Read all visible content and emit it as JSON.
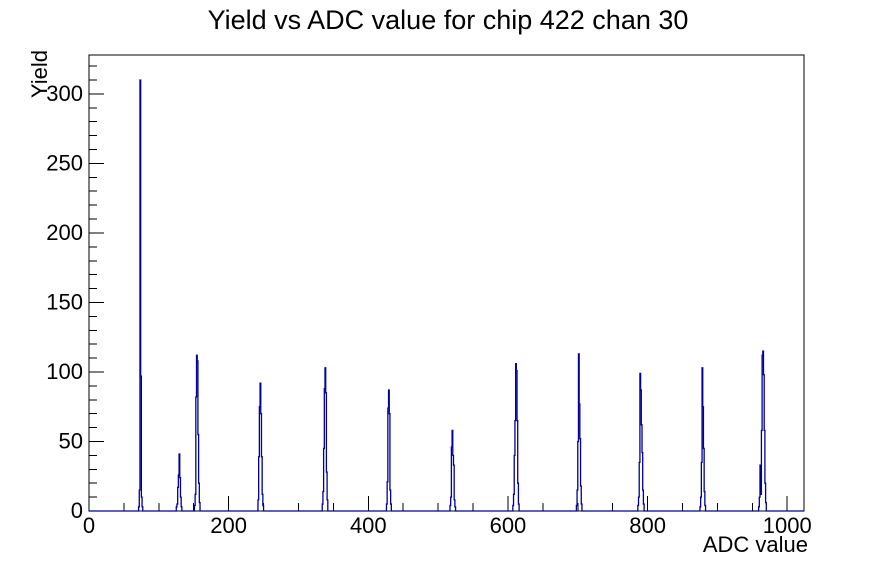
{
  "chart_data": {
    "type": "bar",
    "subtype": "root-histogram-step-outline",
    "title": "Yield vs ADC value for chip 422 chan 30",
    "xlabel": "ADC value",
    "ylabel": "Yield",
    "xlim": [
      0,
      1024
    ],
    "ylim": [
      0,
      328
    ],
    "grid": false,
    "legend": "none",
    "line_color": "#000096",
    "axis_color": "#000000",
    "background_color": "#ffffff",
    "x_major_ticks": [
      0,
      200,
      400,
      600,
      800,
      1000
    ],
    "x_minor_step": 50,
    "y_major_ticks": [
      0,
      50,
      100,
      150,
      200,
      250,
      300
    ],
    "y_minor_step": 10,
    "bins_note": "sparse [adc_bin, yield] pairs; all unlisted bins are 0",
    "bins": [
      [
        71,
        3
      ],
      [
        72,
        15
      ],
      [
        73,
        310
      ],
      [
        74,
        97
      ],
      [
        75,
        10
      ],
      [
        76,
        3
      ],
      [
        125,
        3
      ],
      [
        126,
        5
      ],
      [
        127,
        17
      ],
      [
        128,
        26
      ],
      [
        129,
        41
      ],
      [
        130,
        24
      ],
      [
        131,
        10
      ],
      [
        132,
        3
      ],
      [
        151,
        4
      ],
      [
        152,
        12
      ],
      [
        153,
        82
      ],
      [
        154,
        112
      ],
      [
        155,
        108
      ],
      [
        156,
        55
      ],
      [
        157,
        20
      ],
      [
        158,
        6
      ],
      [
        242,
        8
      ],
      [
        243,
        39
      ],
      [
        244,
        75
      ],
      [
        245,
        92
      ],
      [
        246,
        70
      ],
      [
        247,
        39
      ],
      [
        248,
        12
      ],
      [
        249,
        4
      ],
      [
        334,
        5
      ],
      [
        335,
        14
      ],
      [
        336,
        45
      ],
      [
        337,
        88
      ],
      [
        338,
        103
      ],
      [
        339,
        85
      ],
      [
        340,
        28
      ],
      [
        341,
        8
      ],
      [
        426,
        5
      ],
      [
        427,
        21
      ],
      [
        428,
        74
      ],
      [
        429,
        87
      ],
      [
        430,
        70
      ],
      [
        431,
        15
      ],
      [
        432,
        5
      ],
      [
        517,
        4
      ],
      [
        518,
        10
      ],
      [
        519,
        46
      ],
      [
        520,
        58
      ],
      [
        521,
        40
      ],
      [
        522,
        33
      ],
      [
        523,
        8
      ],
      [
        524,
        3
      ],
      [
        607,
        4
      ],
      [
        608,
        12
      ],
      [
        609,
        40
      ],
      [
        610,
        65
      ],
      [
        611,
        106
      ],
      [
        612,
        101
      ],
      [
        613,
        65
      ],
      [
        614,
        20
      ],
      [
        615,
        5
      ],
      [
        698,
        4
      ],
      [
        699,
        15
      ],
      [
        700,
        50
      ],
      [
        701,
        113
      ],
      [
        702,
        77
      ],
      [
        703,
        52
      ],
      [
        704,
        18
      ],
      [
        705,
        5
      ],
      [
        786,
        4
      ],
      [
        787,
        10
      ],
      [
        788,
        35
      ],
      [
        789,
        99
      ],
      [
        790,
        87
      ],
      [
        791,
        62
      ],
      [
        792,
        42
      ],
      [
        793,
        15
      ],
      [
        794,
        5
      ],
      [
        875,
        3
      ],
      [
        876,
        10
      ],
      [
        877,
        35
      ],
      [
        878,
        103
      ],
      [
        879,
        75
      ],
      [
        880,
        45
      ],
      [
        881,
        14
      ],
      [
        882,
        4
      ],
      [
        959,
        3
      ],
      [
        960,
        10
      ],
      [
        961,
        33
      ],
      [
        962,
        12
      ],
      [
        963,
        58
      ],
      [
        964,
        112
      ],
      [
        965,
        115
      ],
      [
        966,
        98
      ],
      [
        967,
        58
      ],
      [
        968,
        20
      ],
      [
        969,
        6
      ]
    ]
  }
}
